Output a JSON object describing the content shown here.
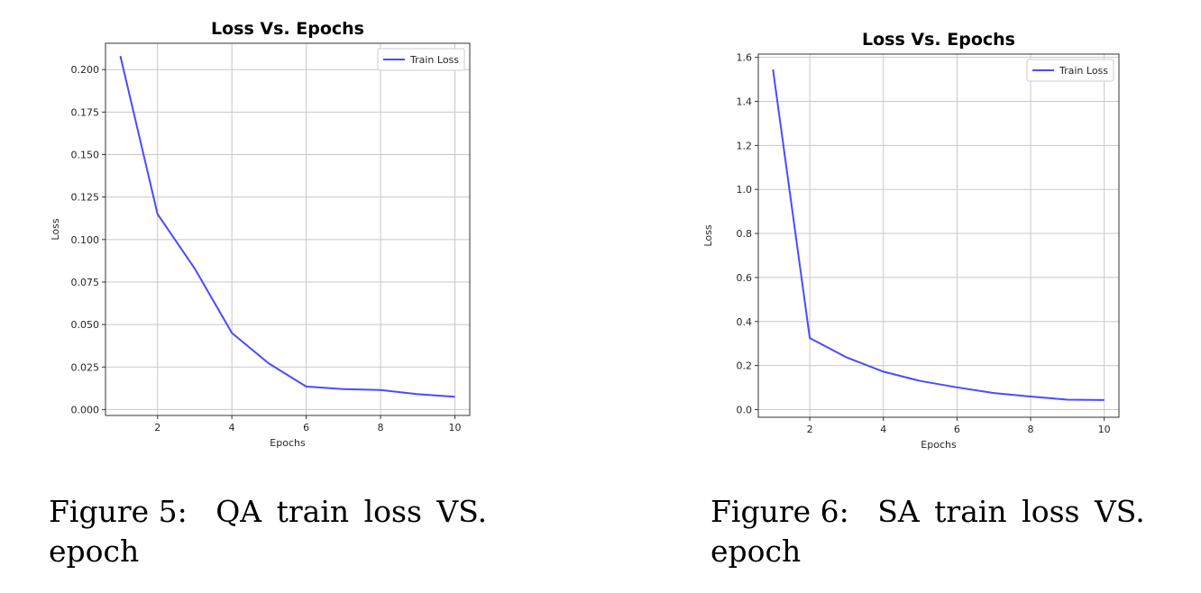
{
  "figures": [
    {
      "caption_label": "Figure 5:",
      "caption_text": "QA train loss VS. epoch",
      "chart_data": {
        "type": "line",
        "title": "Loss Vs. Epochs",
        "xlabel": "Epochs",
        "ylabel": "Loss",
        "xlim": [
          0.6,
          10.4
        ],
        "ylim": [
          -0.0035,
          0.2155
        ],
        "xticks": [
          2,
          4,
          6,
          8,
          10
        ],
        "yticks": [
          0.0,
          0.025,
          0.05,
          0.075,
          0.1,
          0.125,
          0.15,
          0.175,
          0.2
        ],
        "ytick_labels": [
          "0.000",
          "0.025",
          "0.050",
          "0.075",
          "0.100",
          "0.125",
          "0.150",
          "0.175",
          "0.200"
        ],
        "grid": true,
        "legend_position": "top-right",
        "x": [
          1,
          2,
          3,
          4,
          5,
          6,
          7,
          8,
          9,
          10
        ],
        "series": [
          {
            "name": "Train Loss",
            "color": "#4b4bff",
            "values": [
              0.208,
              0.115,
              0.083,
              0.045,
              0.027,
              0.0135,
              0.012,
              0.0115,
              0.009,
              0.0075
            ]
          }
        ]
      }
    },
    {
      "caption_label": "Figure 6:",
      "caption_text": "SA train loss VS. epoch",
      "chart_data": {
        "type": "line",
        "title": "Loss Vs. Epochs",
        "xlabel": "Epochs",
        "ylabel": "Loss",
        "xlim": [
          0.6,
          10.4
        ],
        "ylim": [
          -0.035,
          1.615
        ],
        "xticks": [
          2,
          4,
          6,
          8,
          10
        ],
        "yticks": [
          0.0,
          0.2,
          0.4,
          0.6,
          0.8,
          1.0,
          1.2,
          1.4,
          1.6
        ],
        "ytick_labels": [
          "0.0",
          "0.2",
          "0.4",
          "0.6",
          "0.8",
          "1.0",
          "1.2",
          "1.4",
          "1.6"
        ],
        "grid": true,
        "legend_position": "top-right",
        "x": [
          1,
          2,
          3,
          4,
          5,
          6,
          7,
          8,
          9,
          10
        ],
        "series": [
          {
            "name": "Train Loss",
            "color": "#4b4bff",
            "values": [
              1.545,
              0.325,
              0.237,
              0.172,
              0.13,
              0.101,
              0.075,
              0.059,
              0.045,
              0.043
            ]
          }
        ]
      }
    }
  ]
}
